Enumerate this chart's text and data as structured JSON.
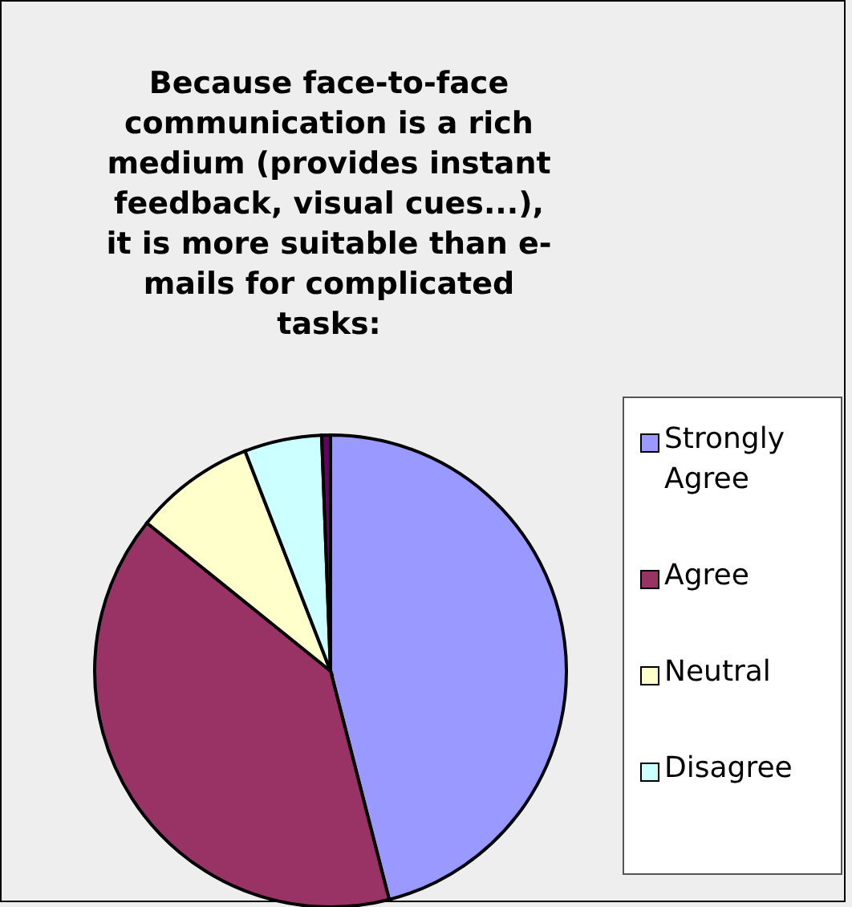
{
  "chart_data": {
    "type": "pie",
    "title": "Because face-to-face communication is a rich medium (provides instant feedback, visual cues...), it is more suitable than e-mails for complicated tasks:",
    "categories": [
      "Strongly Agree",
      "Agree",
      "Neutral",
      "Disagree",
      null
    ],
    "values": [
      46,
      39.8,
      8.3,
      5.3,
      0.6
    ],
    "colors": [
      "#9999ff",
      "#993366",
      "#ffffcc",
      "#ccffff",
      "#660066"
    ],
    "legend": "right"
  }
}
